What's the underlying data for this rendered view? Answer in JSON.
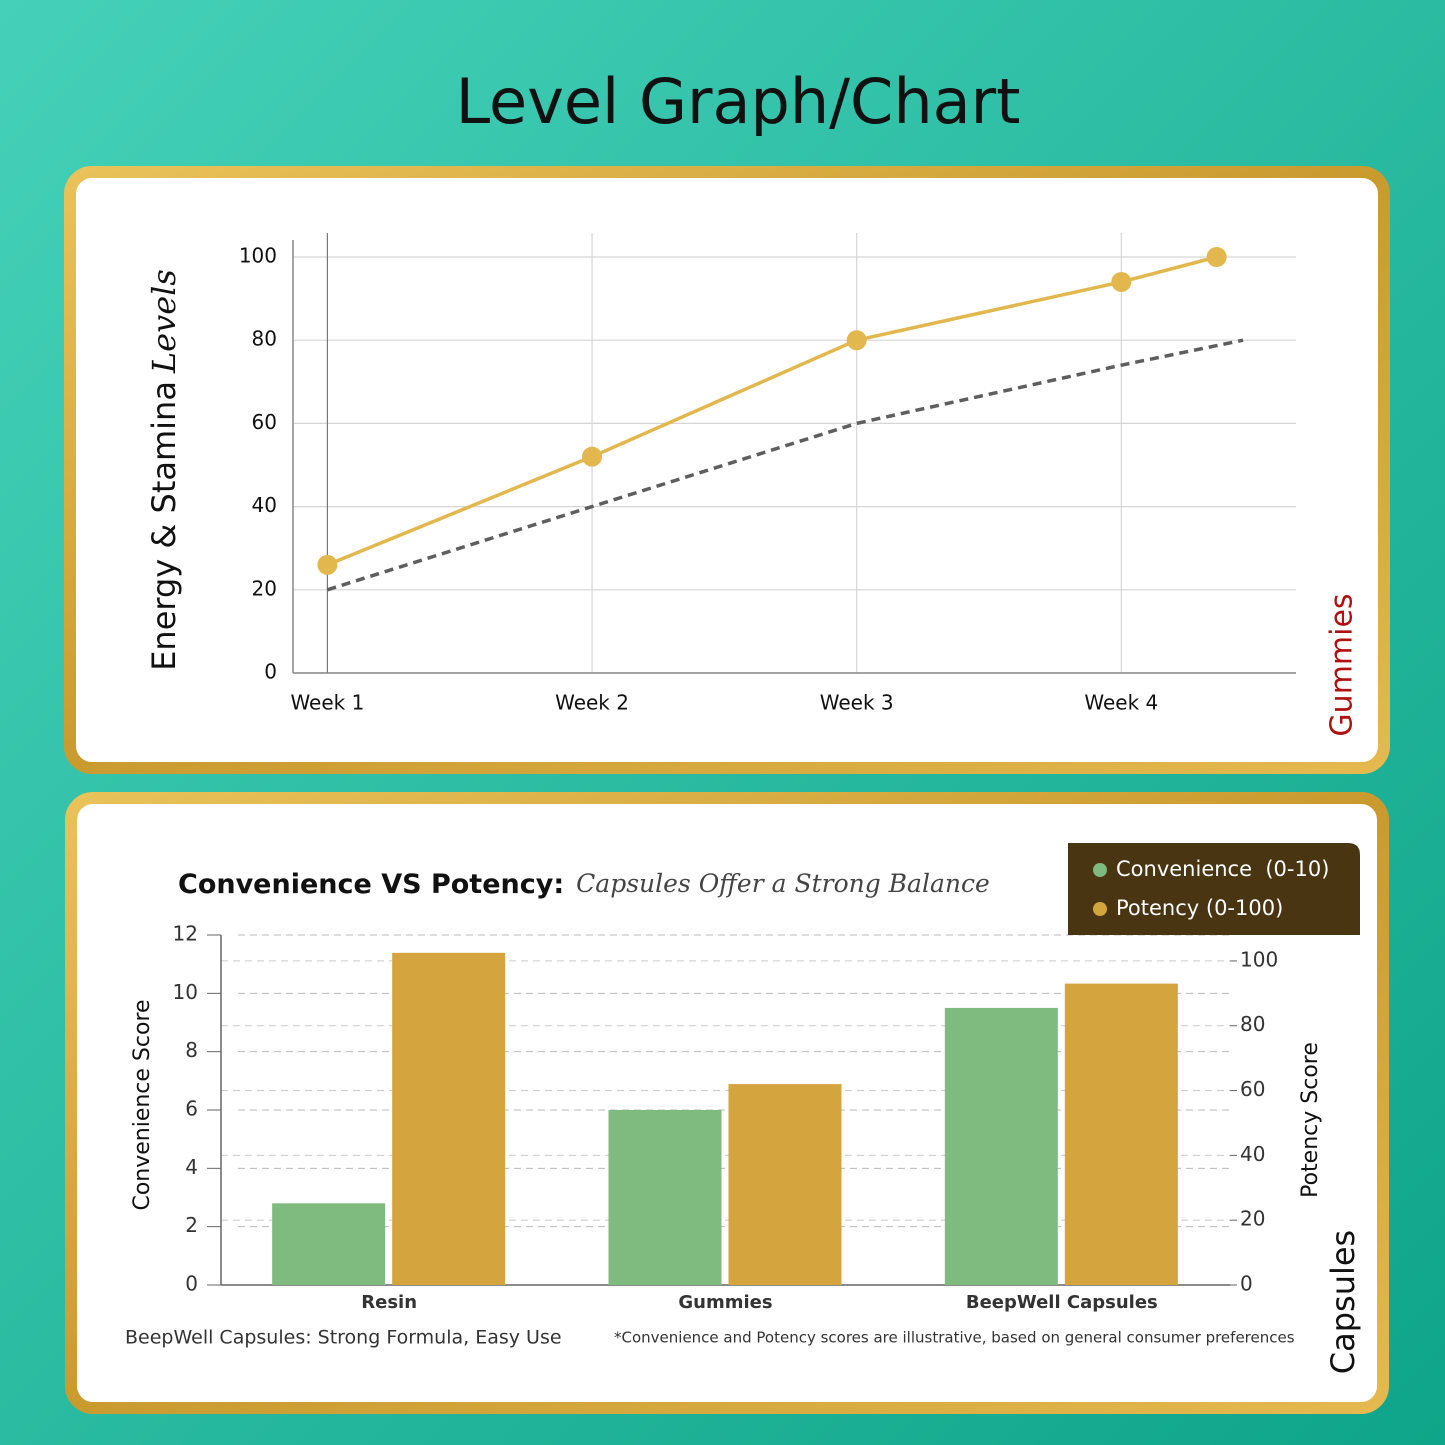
{
  "title": "Level Graph/Chart",
  "chart_data": [
    {
      "type": "line",
      "ylabel": "Energy & Stamina",
      "ylabel_italic": "Levels",
      "side_label": "Gummies",
      "xlim": [
        0.87,
        4.66
      ],
      "xticks": [
        {
          "value": 1,
          "label": "Week 1"
        },
        {
          "value": 2,
          "label": "Week 2"
        },
        {
          "value": 3,
          "label": "Week 3"
        },
        {
          "value": 4,
          "label": "Week 4"
        }
      ],
      "ylim": [
        0,
        100
      ],
      "yticks": [
        0,
        20,
        40,
        60,
        80,
        100
      ],
      "grid": true,
      "series": [
        {
          "color": "#e2b84e",
          "style": "solid",
          "marker": true,
          "x": [
            1,
            2,
            3,
            4,
            4.36
          ],
          "values": [
            26,
            52,
            80,
            94,
            100
          ]
        },
        {
          "color": "#5e5e5e",
          "style": "dashed",
          "marker": false,
          "x": [
            1,
            2,
            3,
            4,
            4.46
          ],
          "values": [
            20,
            40,
            60,
            74,
            80
          ]
        }
      ]
    },
    {
      "type": "bar",
      "title": "Convenience VS Potency:",
      "subtitle": "Capsules Offer a Strong Balance",
      "ylabel": "Convenience Score",
      "y2label": "Potency Score",
      "side_label": "Capsules",
      "categories": [
        "Resin",
        "Gummies",
        "BeepWell Capsules"
      ],
      "ylim": [
        0,
        12
      ],
      "yticks": [
        0,
        2,
        4,
        6,
        8,
        10,
        12
      ],
      "y2lim": [
        0,
        108
      ],
      "y2ticks": [
        0,
        20,
        40,
        60,
        80,
        100
      ],
      "grid": true,
      "series": [
        {
          "name": "Convenience  (0-10)",
          "color": "#7fba7e",
          "values": [
            2.8,
            6.0,
            9.5
          ]
        },
        {
          "name": "Potency (0-100)",
          "color": "#d4a43f",
          "axis": "y2",
          "values": [
            102.5,
            62,
            93
          ]
        }
      ],
      "notes": [
        "BeepWell Capsules: Strong Formula, Easy Use",
        "*Convenience and Potency scores are illustrative, based on general consumer preferences"
      ]
    }
  ]
}
